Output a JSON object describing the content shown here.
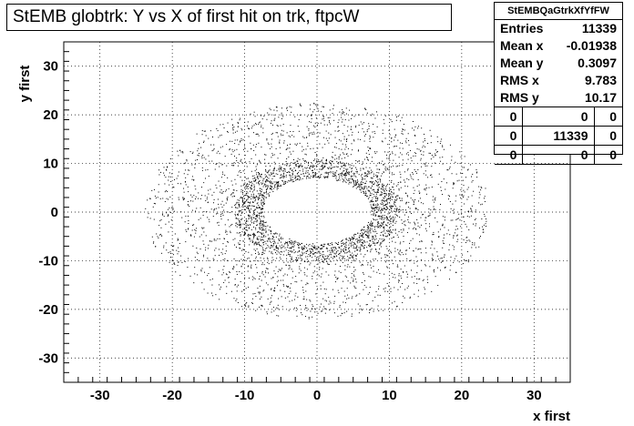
{
  "chart_data": {
    "type": "scatter",
    "title": "StEMB globtrk: Y vs X of first hit on trk, ftpcW",
    "xlabel": "x first",
    "ylabel": "y first",
    "xlim": [
      -35,
      35
    ],
    "ylim": [
      -35,
      35
    ],
    "x_ticks": [
      -30,
      -20,
      -10,
      0,
      10,
      20,
      30
    ],
    "y_ticks": [
      -30,
      -20,
      -10,
      0,
      10,
      20,
      30
    ],
    "grid": true,
    "distribution": {
      "shape": "ring",
      "x_center": -0.02,
      "y_center": 0.31,
      "inner_radius_x": 7.5,
      "inner_radius_y": 6.5,
      "outer_radius": 23,
      "dense_band": [
        7,
        11
      ]
    },
    "stats_box": {
      "name": "StEMBQaGtrkXfYfFW",
      "rows": [
        {
          "label": "Entries",
          "value": "11339"
        },
        {
          "label": "Mean x",
          "value": "-0.01938"
        },
        {
          "label": "Mean y",
          "value": "0.3097"
        },
        {
          "label": "RMS x",
          "value": "9.783"
        },
        {
          "label": "RMS y",
          "value": "10.17"
        }
      ],
      "grid": [
        [
          "0",
          "0",
          "0"
        ],
        [
          "0",
          "11339",
          "0"
        ],
        [
          "0",
          "0",
          "0"
        ]
      ]
    }
  }
}
